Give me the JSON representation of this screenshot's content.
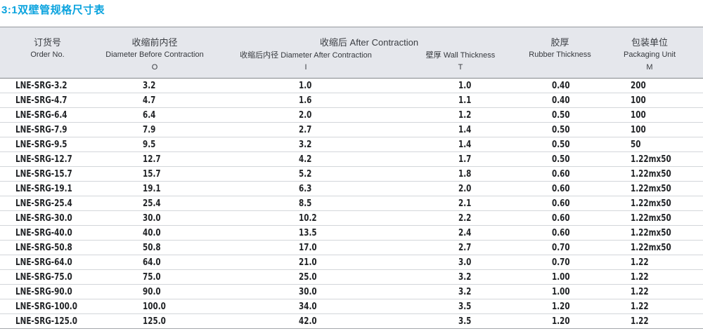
{
  "colors": {
    "accent": "#0aa3de",
    "header_bg": "#e5e7ec",
    "row_line": "#d3d6da",
    "header_line": "#84878b"
  },
  "page": {
    "title": "3:1双壁管规格尺寸表"
  },
  "table": {
    "header": {
      "order_zh": "订货号",
      "order_en": "Order No.",
      "order_sym": "",
      "before_zh": "收缩前内径",
      "before_en": "Diameter Before Contraction",
      "before_sym": "O",
      "after_group": "收缩后 After Contraction",
      "after_en": "收缩后内径 Diameter After Contraction",
      "after_sym": "I",
      "wall_en": "壁厚 Wall Thickness",
      "wall_sym": "T",
      "rubber_zh": "胶厚",
      "rubber_en": "Rubber Thickness",
      "rubber_sym": "",
      "packaging_zh": "包装单位",
      "packaging_en": "Packaging Unit",
      "packaging_sym": "M"
    },
    "columns_order": [
      "order_no",
      "diameter_before",
      "diameter_after",
      "wall_thickness",
      "rubber_thickness",
      "packaging_unit"
    ],
    "rows": [
      {
        "order_no": "LNE-SRG-3.2",
        "diameter_before": "3.2",
        "diameter_after": "1.0",
        "wall_thickness": "1.0",
        "rubber_thickness": "0.40",
        "packaging_unit": "200"
      },
      {
        "order_no": "LNE-SRG-4.7",
        "diameter_before": "4.7",
        "diameter_after": "1.6",
        "wall_thickness": "1.1",
        "rubber_thickness": "0.40",
        "packaging_unit": "100"
      },
      {
        "order_no": "LNE-SRG-6.4",
        "diameter_before": "6.4",
        "diameter_after": "2.0",
        "wall_thickness": "1.2",
        "rubber_thickness": "0.50",
        "packaging_unit": "100"
      },
      {
        "order_no": "LNE-SRG-7.9",
        "diameter_before": "7.9",
        "diameter_after": "2.7",
        "wall_thickness": "1.4",
        "rubber_thickness": "0.50",
        "packaging_unit": "100"
      },
      {
        "order_no": "LNE-SRG-9.5",
        "diameter_before": "9.5",
        "diameter_after": "3.2",
        "wall_thickness": "1.4",
        "rubber_thickness": "0.50",
        "packaging_unit": "50"
      },
      {
        "order_no": "LNE-SRG-12.7",
        "diameter_before": "12.7",
        "diameter_after": "4.2",
        "wall_thickness": "1.7",
        "rubber_thickness": "0.50",
        "packaging_unit": "1.22mx50"
      },
      {
        "order_no": "LNE-SRG-15.7",
        "diameter_before": "15.7",
        "diameter_after": "5.2",
        "wall_thickness": "1.8",
        "rubber_thickness": "0.60",
        "packaging_unit": "1.22mx50"
      },
      {
        "order_no": "LNE-SRG-19.1",
        "diameter_before": "19.1",
        "diameter_after": "6.3",
        "wall_thickness": "2.0",
        "rubber_thickness": "0.60",
        "packaging_unit": "1.22mx50"
      },
      {
        "order_no": "LNE-SRG-25.4",
        "diameter_before": "25.4",
        "diameter_after": "8.5",
        "wall_thickness": "2.1",
        "rubber_thickness": "0.60",
        "packaging_unit": "1.22mx50"
      },
      {
        "order_no": "LNE-SRG-30.0",
        "diameter_before": "30.0",
        "diameter_after": "10.2",
        "wall_thickness": "2.2",
        "rubber_thickness": "0.60",
        "packaging_unit": "1.22mx50"
      },
      {
        "order_no": "LNE-SRG-40.0",
        "diameter_before": "40.0",
        "diameter_after": "13.5",
        "wall_thickness": "2.4",
        "rubber_thickness": "0.60",
        "packaging_unit": "1.22mx50"
      },
      {
        "order_no": "LNE-SRG-50.8",
        "diameter_before": "50.8",
        "diameter_after": "17.0",
        "wall_thickness": "2.7",
        "rubber_thickness": "0.70",
        "packaging_unit": "1.22mx50"
      },
      {
        "order_no": "LNE-SRG-64.0",
        "diameter_before": "64.0",
        "diameter_after": "21.0",
        "wall_thickness": "3.0",
        "rubber_thickness": "0.70",
        "packaging_unit": "1.22"
      },
      {
        "order_no": "LNE-SRG-75.0",
        "diameter_before": "75.0",
        "diameter_after": "25.0",
        "wall_thickness": "3.2",
        "rubber_thickness": "1.00",
        "packaging_unit": "1.22"
      },
      {
        "order_no": "LNE-SRG-90.0",
        "diameter_before": "90.0",
        "diameter_after": "30.0",
        "wall_thickness": "3.2",
        "rubber_thickness": "1.00",
        "packaging_unit": "1.22"
      },
      {
        "order_no": "LNE-SRG-100.0",
        "diameter_before": "100.0",
        "diameter_after": "34.0",
        "wall_thickness": "3.5",
        "rubber_thickness": "1.20",
        "packaging_unit": "1.22"
      },
      {
        "order_no": "LNE-SRG-125.0",
        "diameter_before": "125.0",
        "diameter_after": "42.0",
        "wall_thickness": "3.5",
        "rubber_thickness": "1.20",
        "packaging_unit": "1.22"
      }
    ]
  }
}
